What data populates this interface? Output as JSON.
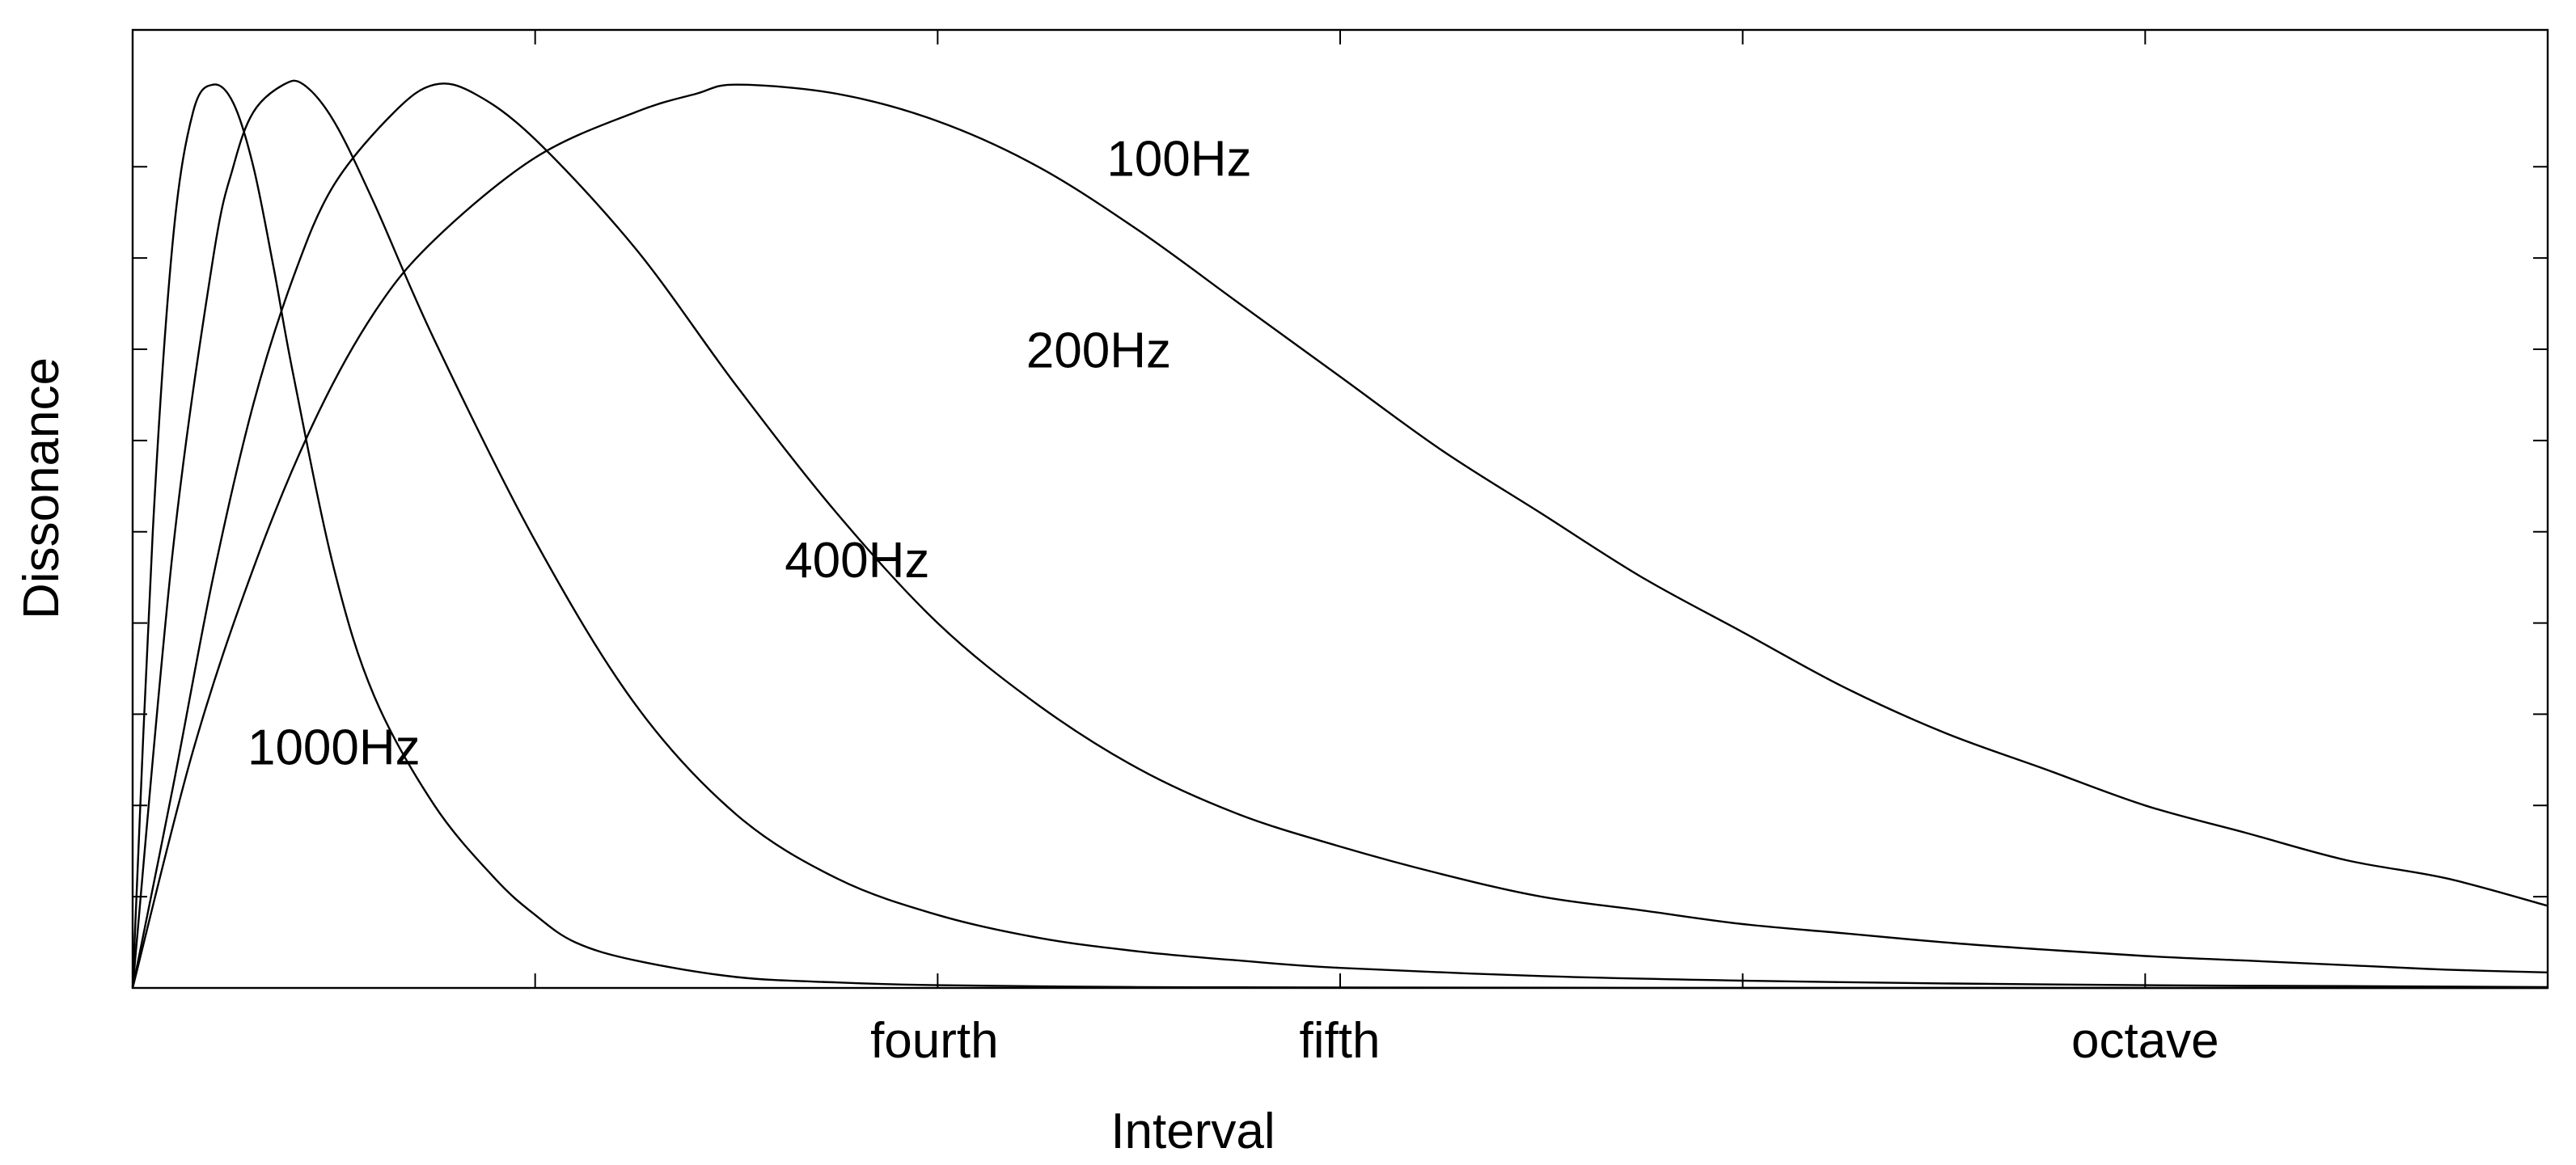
{
  "chart_data": {
    "type": "line",
    "title": "",
    "xlabel": "Interval",
    "ylabel": "Dissonance",
    "xlim": [
      1.0,
      2.2
    ],
    "ylim": [
      0,
      1.05
    ],
    "x_tick_values": [
      1.2,
      1.4,
      1.6,
      1.8,
      2.0
    ],
    "x_tick_labels": [
      {
        "label": "fourth",
        "value": 1.3984
      },
      {
        "label": "fifth",
        "value": 1.5998
      },
      {
        "label": "octave",
        "value": 2.0
      }
    ],
    "y_ticks": [
      0.1,
      0.2,
      0.3,
      0.4,
      0.5,
      0.6,
      0.7,
      0.8,
      0.9
    ],
    "y_tick_labels_shown": false,
    "grid": false,
    "legend": "none (series labeled directly on curves)",
    "series": [
      {
        "name": "100Hz",
        "x": [
          1.0,
          1.03,
          1.06,
          1.09,
          1.12,
          1.15,
          1.2,
          1.25,
          1.28,
          1.3,
          1.35,
          1.4,
          1.45,
          1.5,
          1.55,
          1.6,
          1.65,
          1.7,
          1.75,
          1.8,
          1.85,
          1.9,
          1.95,
          2.0,
          2.05,
          2.1,
          2.15,
          2.2
        ],
        "y": [
          0.0,
          0.26,
          0.46,
          0.62,
          0.74,
          0.82,
          0.91,
          0.96,
          0.98,
          0.99,
          0.98,
          0.95,
          0.9,
          0.83,
          0.75,
          0.67,
          0.59,
          0.52,
          0.45,
          0.39,
          0.33,
          0.28,
          0.24,
          0.2,
          0.17,
          0.14,
          0.12,
          0.09
        ]
      },
      {
        "name": "200Hz",
        "x": [
          1.0,
          1.02,
          1.04,
          1.06,
          1.08,
          1.1,
          1.13,
          1.15,
          1.17,
          1.2,
          1.25,
          1.3,
          1.35,
          1.4,
          1.45,
          1.5,
          1.55,
          1.6,
          1.65,
          1.7,
          1.75,
          1.8,
          1.85,
          1.9,
          1.95,
          2.0,
          2.05,
          2.1,
          2.15,
          2.2
        ],
        "y": [
          0.0,
          0.22,
          0.45,
          0.64,
          0.78,
          0.88,
          0.96,
          0.99,
          0.98,
          0.93,
          0.81,
          0.66,
          0.52,
          0.4,
          0.31,
          0.24,
          0.19,
          0.155,
          0.125,
          0.1,
          0.085,
          0.07,
          0.06,
          0.05,
          0.042,
          0.035,
          0.03,
          0.025,
          0.02,
          0.017
        ]
      },
      {
        "name": "400Hz",
        "x": [
          1.0,
          1.02,
          1.04,
          1.05,
          1.06,
          1.075,
          1.085,
          1.1,
          1.12,
          1.15,
          1.2,
          1.25,
          1.3,
          1.35,
          1.4,
          1.45,
          1.5,
          1.55,
          1.6,
          1.7,
          1.8,
          1.9,
          2.0,
          2.1,
          2.2
        ],
        "y": [
          0.0,
          0.48,
          0.8,
          0.9,
          0.96,
          0.99,
          0.99,
          0.95,
          0.86,
          0.71,
          0.49,
          0.31,
          0.19,
          0.12,
          0.08,
          0.055,
          0.04,
          0.03,
          0.022,
          0.013,
          0.008,
          0.005,
          0.003,
          0.002,
          0.001
        ]
      },
      {
        "name": "1000Hz",
        "x": [
          1.0,
          1.01,
          1.02,
          1.03,
          1.04,
          1.05,
          1.06,
          1.07,
          1.08,
          1.1,
          1.12,
          1.15,
          1.18,
          1.2,
          1.22,
          1.25,
          1.3,
          1.35,
          1.4,
          1.5,
          1.6,
          1.8,
          2.0,
          2.2
        ],
        "y": [
          0.0,
          0.5,
          0.82,
          0.96,
          0.99,
          0.97,
          0.9,
          0.79,
          0.67,
          0.46,
          0.32,
          0.2,
          0.12,
          0.08,
          0.05,
          0.03,
          0.012,
          0.006,
          0.003,
          0.001,
          0.0005,
          0.0,
          0.0,
          0.0
        ]
      }
    ],
    "annotations": [
      {
        "text": "100Hz",
        "series": "100Hz",
        "x": 1.52,
        "y": 0.89
      },
      {
        "text": "200Hz",
        "series": "200Hz",
        "x": 1.48,
        "y": 0.68
      },
      {
        "text": "400Hz",
        "series": "400Hz",
        "x": 1.36,
        "y": 0.45
      },
      {
        "text": "1000Hz",
        "series": "1000Hz",
        "x": 1.1,
        "y": 0.245
      }
    ]
  }
}
